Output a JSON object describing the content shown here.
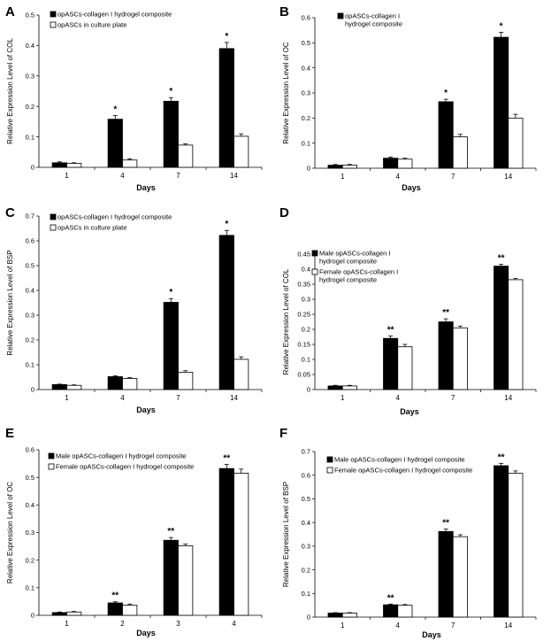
{
  "chart_data": [
    {
      "panel": "A",
      "type": "bar",
      "categories": [
        "1",
        "4",
        "7",
        "14"
      ],
      "series": [
        {
          "name": "opASCs-collagen I hydrogel composite",
          "color": "#000000",
          "values": [
            0.015,
            0.158,
            0.217,
            0.39
          ],
          "errors": [
            0.003,
            0.012,
            0.012,
            0.02
          ]
        },
        {
          "name": "opASCs in culture plate",
          "color": "#ffffff",
          "values": [
            0.013,
            0.024,
            0.073,
            0.102
          ],
          "errors": [
            0.002,
            0.004,
            0.004,
            0.008
          ]
        }
      ],
      "annotations": [
        "",
        "*",
        "*",
        "*"
      ],
      "xlabel": "Days",
      "ylabel": "Relative Expression Level of COL",
      "ylim": [
        0,
        0.5
      ],
      "yticks": [
        "0",
        "0.1",
        "0.2",
        "0.3",
        "0.4",
        "0.5"
      ],
      "legend": "top-left"
    },
    {
      "panel": "B",
      "type": "bar",
      "categories": [
        "1",
        "4",
        "7",
        "14"
      ],
      "series": [
        {
          "name": "opASCs-collagen I hydrogel composite",
          "color": "#000000",
          "values": [
            0.012,
            0.04,
            0.265,
            0.522
          ],
          "errors": [
            0.003,
            0.005,
            0.01,
            0.02
          ]
        },
        {
          "name": "",
          "color": "#ffffff",
          "values": [
            0.012,
            0.036,
            0.125,
            0.2
          ],
          "errors": [
            0.003,
            0.004,
            0.01,
            0.015
          ]
        }
      ],
      "annotations": [
        "",
        "",
        "*",
        "*"
      ],
      "xlabel": "Days",
      "ylabel": "Relative Expression Level of OC",
      "ylim": [
        0,
        0.6
      ],
      "yticks": [
        "0",
        "0.1",
        "0.2",
        "0.3",
        "0.4",
        "0.5",
        "0.6"
      ],
      "legend": "top-left"
    },
    {
      "panel": "C",
      "type": "bar",
      "categories": [
        "1",
        "4",
        "7",
        "14"
      ],
      "series": [
        {
          "name": "opASCs-collagen I hydrogel composite",
          "color": "#000000",
          "values": [
            0.02,
            0.052,
            0.352,
            0.622
          ],
          "errors": [
            0.002,
            0.003,
            0.015,
            0.02
          ]
        },
        {
          "name": "opASCs in culture plate",
          "color": "#ffffff",
          "values": [
            0.017,
            0.045,
            0.07,
            0.122
          ],
          "errors": [
            0.002,
            0.003,
            0.006,
            0.01
          ]
        }
      ],
      "annotations": [
        "",
        "",
        "*",
        "*"
      ],
      "xlabel": "Days",
      "ylabel": "Relative Expression Level of BSP",
      "ylim": [
        0,
        0.7
      ],
      "yticks": [
        "0",
        "0.1",
        "0.2",
        "0.3",
        "0.4",
        "0.5",
        "0.6",
        "0.7"
      ],
      "legend": "top-left"
    },
    {
      "panel": "D",
      "type": "bar",
      "categories": [
        "1",
        "4",
        "7",
        "14"
      ],
      "series": [
        {
          "name": "Male opASCs-collagen I hydrogel composite",
          "color": "#000000",
          "values": [
            0.012,
            0.17,
            0.225,
            0.41
          ],
          "errors": [
            0.002,
            0.008,
            0.01,
            0.006
          ]
        },
        {
          "name": "Female opASCs-collagen I hydrogel composite",
          "color": "#ffffff",
          "values": [
            0.012,
            0.142,
            0.205,
            0.365
          ],
          "errors": [
            0.002,
            0.008,
            0.006,
            0.004
          ]
        }
      ],
      "annotations": [
        "",
        "**",
        "**",
        "**"
      ],
      "xlabel": "Days",
      "ylabel": "Relative Expression Level of COL",
      "ylim": [
        0,
        0.45
      ],
      "yticks": [
        "0",
        "0.05",
        "0.1",
        "0.15",
        "0.2",
        "0.25",
        "0.3",
        "0.35",
        "0.4",
        "0.45"
      ],
      "legend": "top-left"
    },
    {
      "panel": "E",
      "type": "bar",
      "categories": [
        "1",
        "2",
        "3",
        "4"
      ],
      "series": [
        {
          "name": "Male opASCs-collagen I hydrogel composite",
          "color": "#000000",
          "values": [
            0.01,
            0.045,
            0.272,
            0.532
          ],
          "errors": [
            0.002,
            0.004,
            0.01,
            0.015
          ]
        },
        {
          "name": "Female opASCs-collagen I hydrogel composite",
          "color": "#ffffff",
          "values": [
            0.012,
            0.037,
            0.252,
            0.515
          ],
          "errors": [
            0.002,
            0.004,
            0.006,
            0.015
          ]
        }
      ],
      "annotations": [
        "",
        "**",
        "**",
        "**"
      ],
      "xlabel": "Days",
      "ylabel": "Relative Expression Level of OC",
      "ylim": [
        0,
        0.6
      ],
      "yticks": [
        "0",
        "0.1",
        "0.2",
        "0.3",
        "0.4",
        "0.5",
        "0.6"
      ],
      "legend": "top-left"
    },
    {
      "panel": "F",
      "type": "bar",
      "categories": [
        "1",
        "4",
        "7",
        "14"
      ],
      "series": [
        {
          "name": "Male opASCs-collagen I hydrogel composite",
          "color": "#000000",
          "values": [
            0.017,
            0.052,
            0.362,
            0.64
          ],
          "errors": [
            0.002,
            0.003,
            0.01,
            0.01
          ]
        },
        {
          "name": "Female opASCs-collagen I hydrogel composite",
          "color": "#ffffff",
          "values": [
            0.017,
            0.05,
            0.34,
            0.608
          ],
          "errors": [
            0.002,
            0.003,
            0.008,
            0.01
          ]
        }
      ],
      "annotations": [
        "",
        "**",
        "**",
        "**"
      ],
      "xlabel": "Days",
      "ylabel": "Relative Expression Level of BSP",
      "ylim": [
        0,
        0.7
      ],
      "yticks": [
        "0",
        "0.1",
        "0.2",
        "0.3",
        "0.4",
        "0.5",
        "0.6",
        "0.7"
      ],
      "legend": "top-left"
    }
  ]
}
